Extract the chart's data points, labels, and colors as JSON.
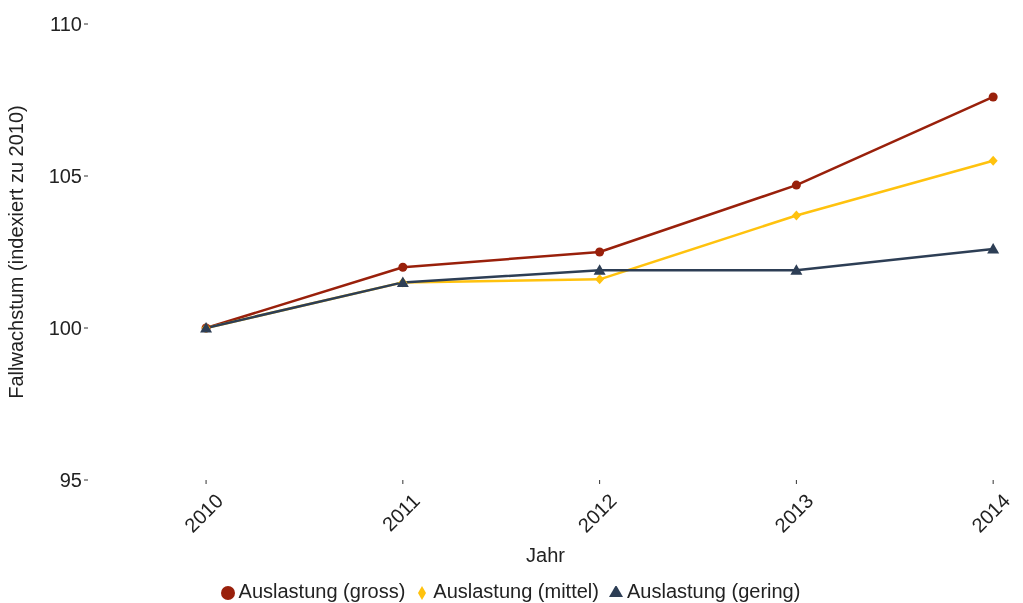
{
  "chart_data": {
    "type": "line",
    "xlabel": "Jahr",
    "ylabel": "Fallwachstum (indexiert zu 2010)",
    "categories": [
      "2010",
      "2011",
      "2012",
      "2013",
      "2014"
    ],
    "series": [
      {
        "name": "Auslastung (gross)",
        "color": "#99200b",
        "marker": "circle",
        "values": [
          100,
          102.0,
          102.5,
          104.7,
          107.6
        ]
      },
      {
        "name": "Auslastung (mittel)",
        "color": "#ffc20e",
        "marker": "diamond",
        "values": [
          100,
          101.5,
          101.6,
          103.7,
          105.5
        ]
      },
      {
        "name": "Auslastung (gering)",
        "color": "#2d3e55",
        "marker": "triangle",
        "values": [
          100,
          101.5,
          101.9,
          101.9,
          102.6
        ]
      }
    ],
    "ylim": [
      95,
      110
    ],
    "yticks": [
      95,
      100,
      105,
      110
    ],
    "legend": "bottom",
    "line_style": "solid"
  }
}
